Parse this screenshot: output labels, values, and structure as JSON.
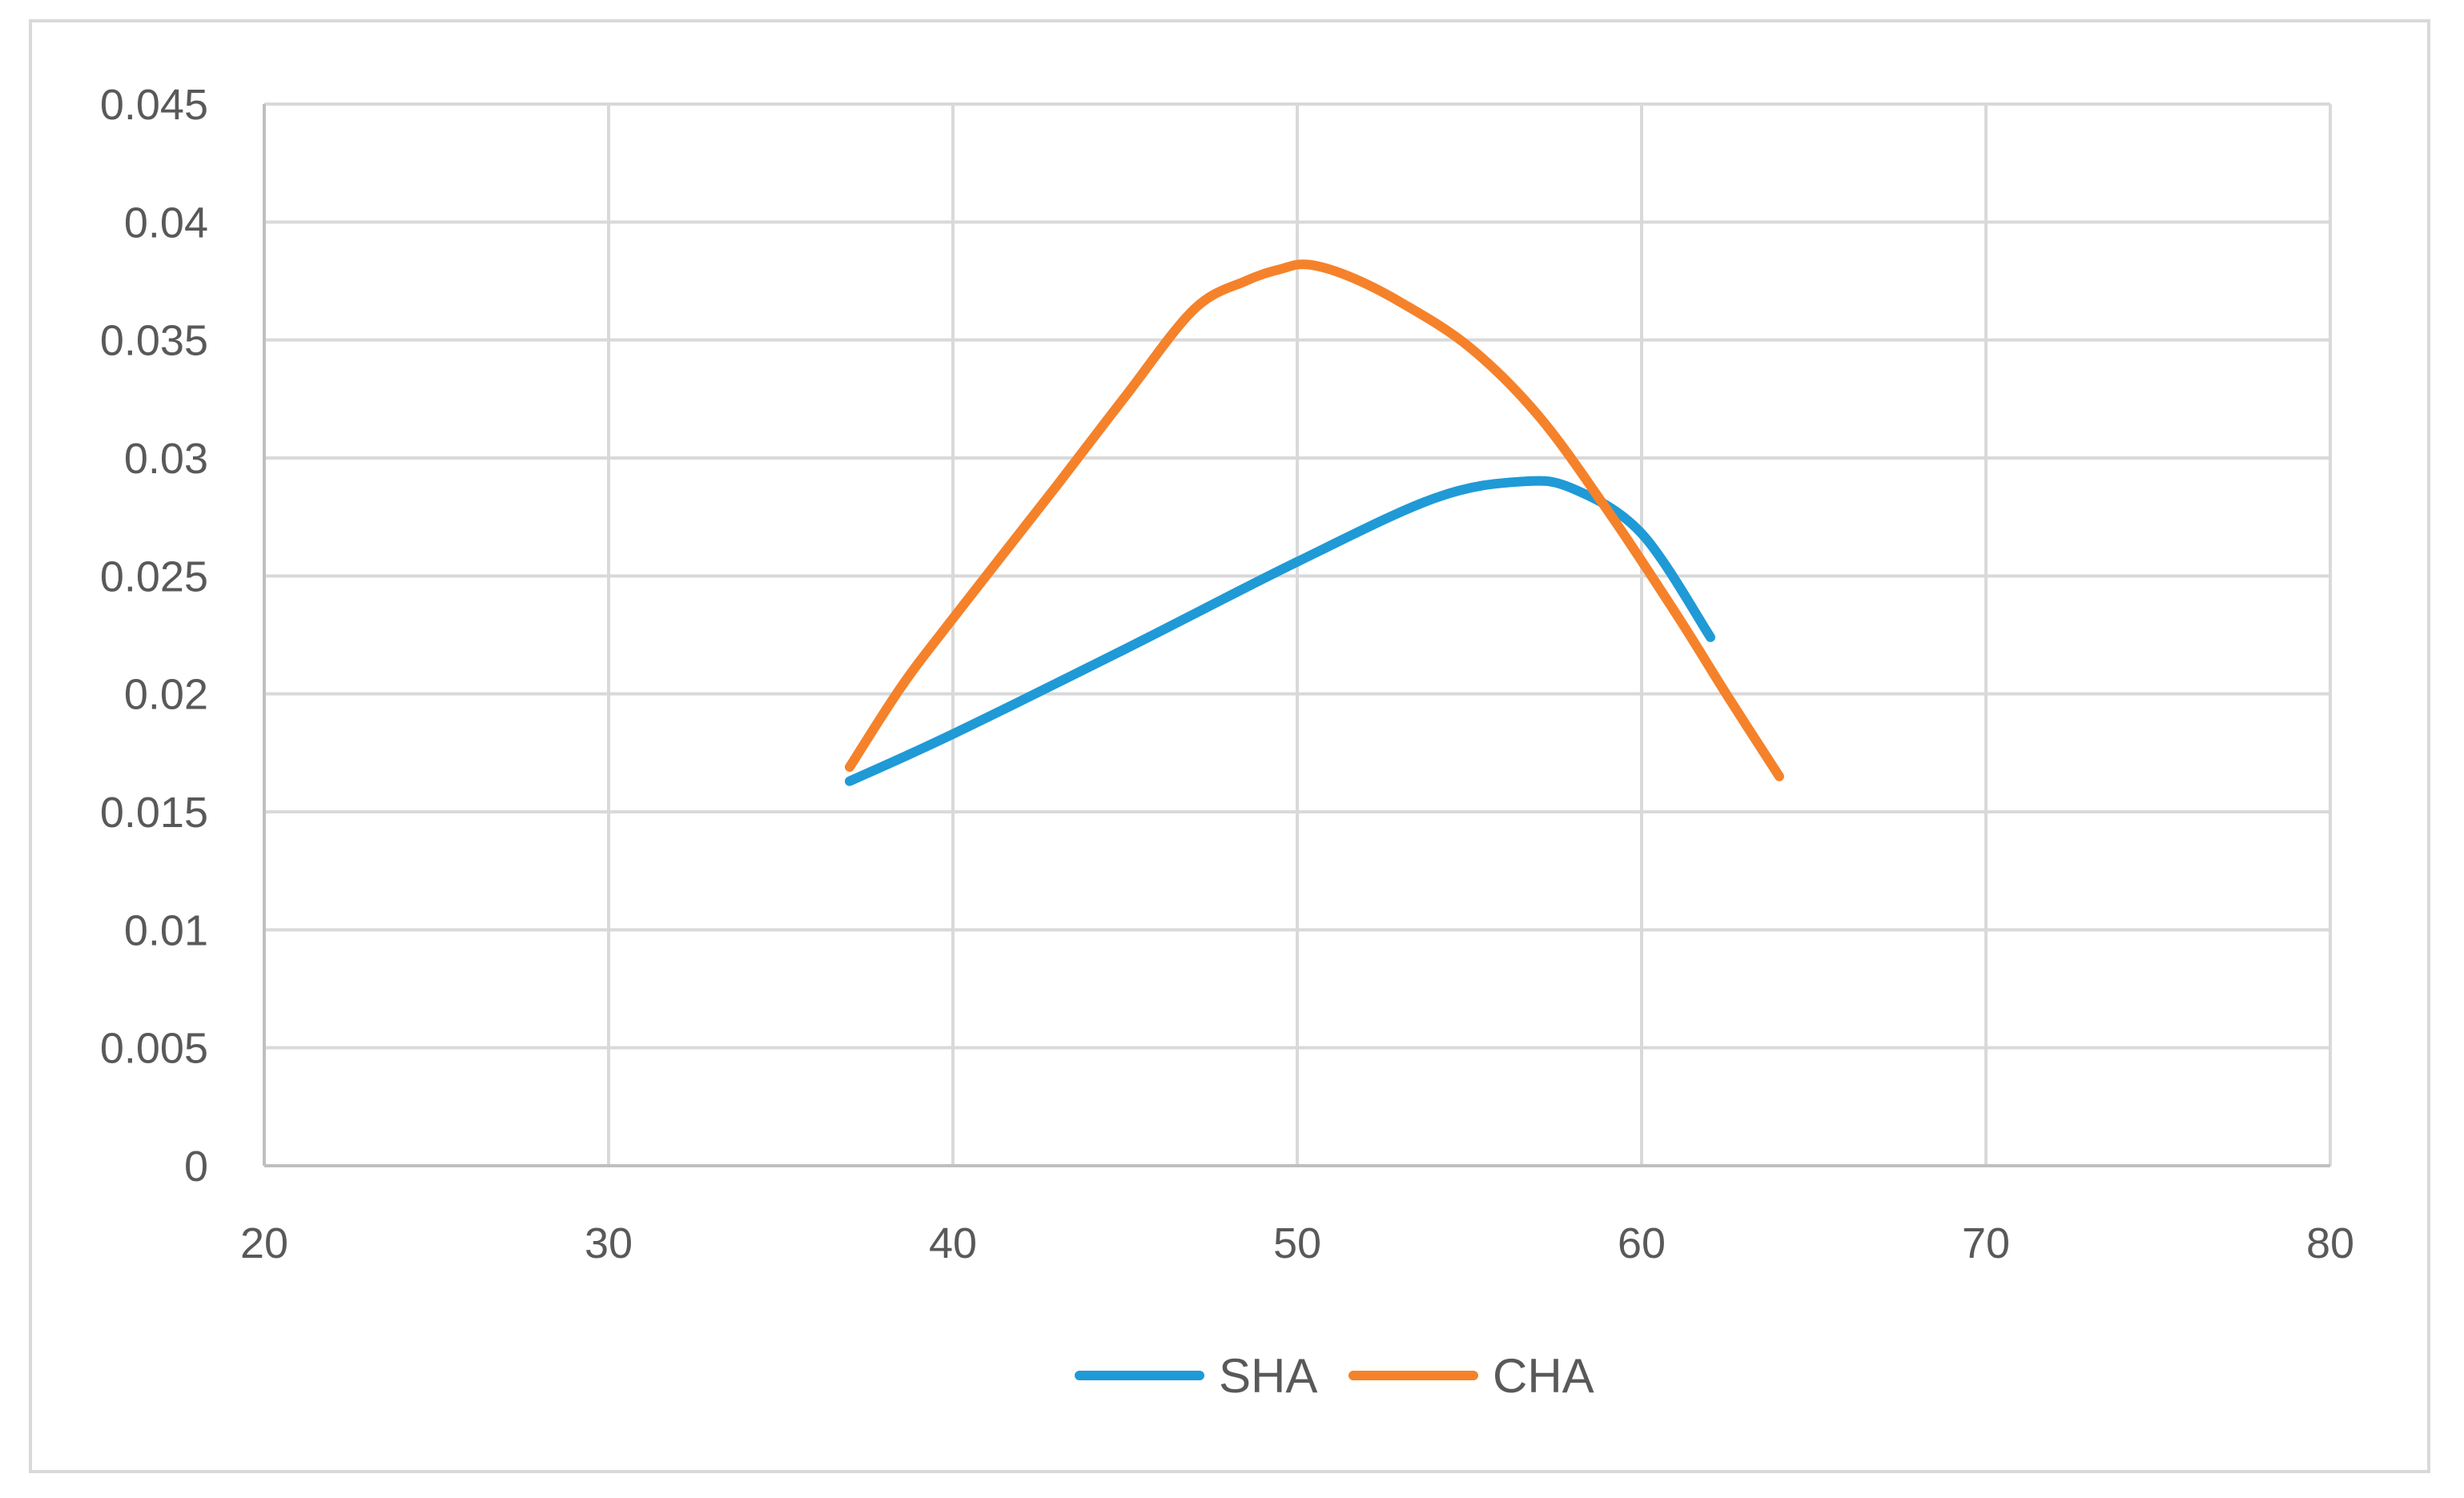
{
  "chart_data": {
    "type": "line",
    "title": "",
    "xlabel": "",
    "ylabel": "",
    "xlim": [
      20,
      80
    ],
    "ylim": [
      0,
      0.045
    ],
    "x_ticks": [
      "20",
      "30",
      "40",
      "50",
      "60",
      "70",
      "80"
    ],
    "y_ticks": [
      "0",
      "0.005",
      "0.01",
      "0.015",
      "0.02",
      "0.025",
      "0.03",
      "0.035",
      "0.04",
      "0.045"
    ],
    "grid": true,
    "smooth": true,
    "legend_position": "bottom",
    "series": [
      {
        "name": "SHA",
        "color": "#1f9ad6",
        "x": [
          37,
          40,
          45,
          50,
          54,
          56.5,
          58,
          60,
          62
        ],
        "y": [
          0.0163,
          0.0183,
          0.0219,
          0.0256,
          0.0283,
          0.029,
          0.0287,
          0.0268,
          0.0224
        ]
      },
      {
        "name": "CHA",
        "color": "#f5822a",
        "x": [
          37,
          38.5,
          40,
          43,
          45,
          47,
          48.5,
          49.5,
          50.3,
          51.5,
          53,
          55,
          57,
          59,
          61,
          62.5,
          64
        ],
        "y": [
          0.0169,
          0.0203,
          0.0232,
          0.0288,
          0.0326,
          0.0363,
          0.0375,
          0.038,
          0.0382,
          0.0377,
          0.0366,
          0.0347,
          0.0318,
          0.0278,
          0.0234,
          0.0199,
          0.0165
        ]
      }
    ]
  }
}
